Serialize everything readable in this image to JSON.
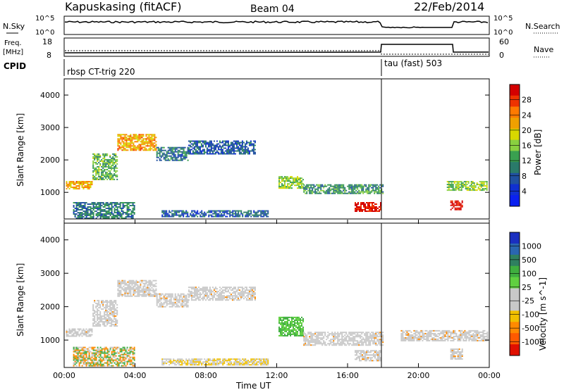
{
  "header": {
    "station": "Kapuskasing (fitACF)",
    "beam": "Beam 04",
    "date": "22/Feb/2014"
  },
  "status_panels": {
    "nsky": {
      "label": "N.Sky",
      "ticks": [
        "10^5",
        "10^0"
      ]
    },
    "nsearch": {
      "label": "N.Search",
      "ticks": [
        "10^5",
        "10^0"
      ]
    },
    "freq": {
      "label_line1": "Freq.",
      "label_line2": "[MHz]",
      "ticks": [
        "18",
        "8"
      ]
    },
    "nave": {
      "label": "Nave",
      "ticks": [
        "60",
        "0"
      ]
    },
    "cpid": {
      "label": "CPID",
      "modes": [
        {
          "name": "rbsp CT-trig 220",
          "start_ut": "00:00",
          "end_ut": "18:00"
        },
        {
          "name": "tau (fast) 503",
          "start_ut": "18:00",
          "end_ut": "24:00"
        }
      ]
    }
  },
  "power_colorbar": {
    "label": "Power [dB]",
    "ticks": [
      "28",
      "24",
      "20",
      "16",
      "12",
      "8",
      "4"
    ],
    "colors": [
      "#d40000",
      "#ee3300",
      "#ff7a00",
      "#f0a000",
      "#d8d800",
      "#8ad040",
      "#3aa050",
      "#2a7a6a",
      "#2050a0",
      "#1030d0",
      "#0a20f0"
    ]
  },
  "velocity_colorbar": {
    "label": "Velocity [m s^-1]",
    "ticks": [
      "1000",
      "500",
      "100",
      "25",
      "-25",
      "-100",
      "-500",
      "-1000"
    ],
    "colors": [
      "#1a2fc0",
      "#2a66b0",
      "#2f8060",
      "#3fae3f",
      "#60d040",
      "#c8c8c8",
      "#c8c8c8",
      "#f0c000",
      "#ff8a00",
      "#ff5a00",
      "#e01000"
    ]
  },
  "x_axis": {
    "label": "Time UT",
    "ticks": [
      "00:00",
      "04:00",
      "08:00",
      "12:00",
      "16:00",
      "20:00",
      "00:00"
    ]
  },
  "chart_data": [
    {
      "type": "heatmap",
      "title": "",
      "xlabel": "Time UT",
      "ylabel": "Slant Range [km]",
      "xlim_hours": [
        0,
        24
      ],
      "ylim": [
        180,
        4500
      ],
      "yticks": [
        "1000",
        "2000",
        "3000",
        "4000"
      ],
      "colorbar": "Power [dB]",
      "bands": [
        {
          "t": [
            0.1,
            1.6
          ],
          "r": [
            1100,
            1350
          ],
          "level": 20
        },
        {
          "t": [
            1.6,
            3.0
          ],
          "r": [
            1400,
            2200
          ],
          "level": 12
        },
        {
          "t": [
            3.0,
            5.2
          ],
          "r": [
            2300,
            2800
          ],
          "level": 20
        },
        {
          "t": [
            5.2,
            7.0
          ],
          "r": [
            2000,
            2400
          ],
          "level": 8
        },
        {
          "t": [
            7.0,
            10.8
          ],
          "r": [
            2200,
            2600
          ],
          "level": 6
        },
        {
          "t": [
            12.1,
            13.5
          ],
          "r": [
            1150,
            1500
          ],
          "level": 14
        },
        {
          "t": [
            13.5,
            18.0
          ],
          "r": [
            950,
            1250
          ],
          "level": 10
        },
        {
          "t": [
            16.4,
            17.9
          ],
          "r": [
            400,
            700
          ],
          "level": 28
        },
        {
          "t": [
            21.6,
            23.9
          ],
          "r": [
            1050,
            1350
          ],
          "level": 14
        },
        {
          "t": [
            21.8,
            22.5
          ],
          "r": [
            450,
            750
          ],
          "level": 28
        },
        {
          "t": [
            0.5,
            4.0
          ],
          "r": [
            200,
            700
          ],
          "level": 8
        },
        {
          "t": [
            5.5,
            11.5
          ],
          "r": [
            250,
            450
          ],
          "level": 6
        }
      ]
    },
    {
      "type": "heatmap",
      "title": "",
      "xlabel": "Time UT",
      "ylabel": "Slant Range [km]",
      "xlim_hours": [
        0,
        24
      ],
      "ylim": [
        180,
        4500
      ],
      "yticks": [
        "1000",
        "2000",
        "3000",
        "4000"
      ],
      "colorbar": "Velocity [m s^-1]",
      "bands": [
        {
          "t": [
            0.1,
            1.6
          ],
          "r": [
            1100,
            1350
          ],
          "level": 0
        },
        {
          "t": [
            1.6,
            3.0
          ],
          "r": [
            1400,
            2200
          ],
          "level": 0
        },
        {
          "t": [
            3.0,
            5.2
          ],
          "r": [
            2300,
            2800
          ],
          "level": 0
        },
        {
          "t": [
            5.2,
            7.0
          ],
          "r": [
            2000,
            2400
          ],
          "level": 0
        },
        {
          "t": [
            7.0,
            10.8
          ],
          "r": [
            2200,
            2600
          ],
          "level": 0
        },
        {
          "t": [
            12.1,
            13.5
          ],
          "r": [
            1150,
            1700
          ],
          "level": 60
        },
        {
          "t": [
            13.5,
            18.0
          ],
          "r": [
            850,
            1250
          ],
          "level": 0
        },
        {
          "t": [
            16.4,
            17.9
          ],
          "r": [
            400,
            700
          ],
          "level": 0
        },
        {
          "t": [
            19.0,
            23.9
          ],
          "r": [
            1000,
            1300
          ],
          "level": 0
        },
        {
          "t": [
            21.8,
            22.5
          ],
          "r": [
            450,
            750
          ],
          "level": 0
        },
        {
          "t": [
            0.5,
            4.0
          ],
          "r": [
            250,
            800
          ],
          "level": -150
        },
        {
          "t": [
            5.5,
            11.5
          ],
          "r": [
            250,
            450
          ],
          "level": -80
        }
      ]
    }
  ]
}
